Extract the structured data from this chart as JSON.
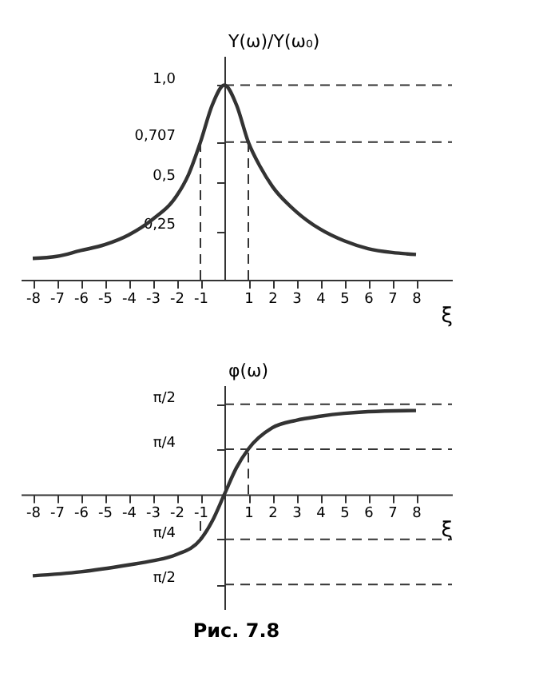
{
  "chart_data": [
    {
      "type": "line",
      "ylabel": "Y(ω)/Y(ω₀)",
      "xlabel": "ξ",
      "grid": false,
      "line_style": "solid",
      "marker": "none",
      "xlim": [
        -8.5,
        9.5
      ],
      "ylim": [
        0,
        1.15
      ],
      "xticks": [
        -8,
        -7,
        -6,
        -5,
        -4,
        -3,
        -2,
        -1,
        1,
        2,
        3,
        4,
        5,
        6,
        7,
        8
      ],
      "yticks": [
        {
          "value": 0.25,
          "label": "0,25"
        },
        {
          "value": 0.5,
          "label": "0,5"
        },
        {
          "value": 0.707,
          "label": "0,707"
        },
        {
          "value": 1.0,
          "label": "1,0"
        }
      ],
      "series": [
        {
          "color": "#333333",
          "x": [
            -8,
            -7,
            -6,
            -5,
            -4,
            -3,
            -2,
            -1.5,
            -1,
            -0.5,
            0,
            0.5,
            1,
            1.5,
            2,
            3,
            4,
            5,
            6,
            7,
            8
          ],
          "values": [
            0.11,
            0.12,
            0.15,
            0.18,
            0.23,
            0.31,
            0.43,
            0.54,
            0.707,
            0.9,
            1.0,
            0.9,
            0.707,
            0.58,
            0.48,
            0.35,
            0.26,
            0.2,
            0.16,
            0.14,
            0.13
          ]
        }
      ],
      "ref_lines": [
        {
          "axis": "y",
          "value": 1.0,
          "line_style": "dashed",
          "color": "#333333"
        },
        {
          "axis": "y",
          "value": 0.707,
          "line_style": "dashed",
          "color": "#333333"
        },
        {
          "axis": "x",
          "value": -1,
          "line_style": "dashed",
          "color": "#333333"
        },
        {
          "axis": "x",
          "value": 1,
          "line_style": "dashed",
          "color": "#333333"
        }
      ]
    },
    {
      "type": "line",
      "ylabel": "φ(ω)",
      "xlabel": "ξ",
      "grid": false,
      "line_style": "solid",
      "marker": "none",
      "xlim": [
        -8.5,
        9.5
      ],
      "ylim": [
        -2.0,
        1.9
      ],
      "xticks": [
        -8,
        -7,
        -6,
        -5,
        -4,
        -3,
        -2,
        -1,
        1,
        2,
        3,
        4,
        5,
        6,
        7,
        8
      ],
      "yticks": [
        {
          "value": -1.5708,
          "label": "π/2"
        },
        {
          "value": -0.7854,
          "label": "π/4"
        },
        {
          "value": 0.7854,
          "label": "π/4"
        },
        {
          "value": 1.5708,
          "label": "π/2"
        }
      ],
      "series": [
        {
          "color": "#333333",
          "x": [
            -8,
            -6,
            -4,
            -3,
            -2,
            -1,
            -0.5,
            0,
            0.5,
            1,
            2,
            3,
            4,
            5,
            6,
            8
          ],
          "values": [
            -1.42,
            -1.35,
            -1.23,
            -1.16,
            -1.05,
            -0.79,
            -0.46,
            0,
            0.46,
            0.79,
            1.16,
            1.29,
            1.36,
            1.41,
            1.44,
            1.46
          ]
        }
      ],
      "ref_lines": [
        {
          "axis": "y",
          "value": 1.5708,
          "line_style": "dashed",
          "color": "#333333"
        },
        {
          "axis": "y",
          "value": 0.7854,
          "line_style": "dashed",
          "color": "#333333"
        },
        {
          "axis": "y",
          "value": -0.7854,
          "line_style": "dashed",
          "color": "#333333"
        },
        {
          "axis": "y",
          "value": -1.5708,
          "line_style": "dashed",
          "color": "#333333"
        },
        {
          "axis": "x",
          "value": -1,
          "line_style": "dashed",
          "color": "#333333"
        },
        {
          "axis": "x",
          "value": 1,
          "line_style": "dashed",
          "color": "#333333"
        }
      ],
      "annotations": [
        "Рис. 7.8"
      ]
    }
  ]
}
